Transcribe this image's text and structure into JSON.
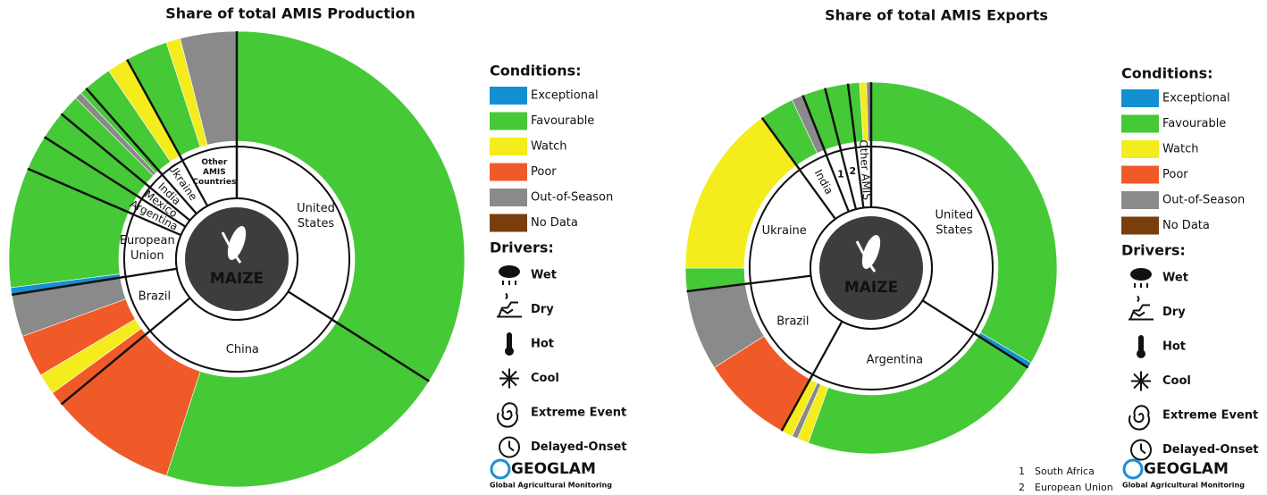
{
  "legend": {
    "conditions_title": "Conditions:",
    "conditions": [
      {
        "name": "Exceptional",
        "color": "#1290d2"
      },
      {
        "name": "Favourable",
        "color": "#45c936"
      },
      {
        "name": "Watch",
        "color": "#f4ec1c"
      },
      {
        "name": "Poor",
        "color": "#f05a28"
      },
      {
        "name": "Out-of-Season",
        "color": "#8a8a8a"
      },
      {
        "name": "No Data",
        "color": "#7a3e0c"
      }
    ],
    "drivers_title": "Drivers:",
    "drivers": [
      "Wet",
      "Dry",
      "Hot",
      "Cool",
      "Extreme Event",
      "Delayed-Onset"
    ]
  },
  "logo": {
    "name": "GEOGLAM",
    "tagline": "Global Agricultural Monitoring"
  },
  "chart_data": [
    {
      "type": "donut",
      "title": "Share of total AMIS Production",
      "center_label": "MAIZE",
      "countries": [
        {
          "label": "United States",
          "value": 34,
          "segments": [
            {
              "color": "#45c936",
              "value": 34
            }
          ]
        },
        {
          "label": "China",
          "value": 30,
          "segments": [
            {
              "color": "#45c936",
              "value": 21
            },
            {
              "color": "#f05a28",
              "value": 9
            }
          ]
        },
        {
          "label": "Brazil",
          "value": 8.5,
          "segments": [
            {
              "color": "#f05a28",
              "value": 1
            },
            {
              "color": "#f4ec1c",
              "value": 1.5
            },
            {
              "color": "#f05a28",
              "value": 3
            },
            {
              "color": "#8a8a8a",
              "value": 3
            }
          ]
        },
        {
          "label": "European Union",
          "value": 9,
          "segments": [
            {
              "color": "#1290d2",
              "value": 0.5
            },
            {
              "color": "#45c936",
              "value": 8.5
            }
          ]
        },
        {
          "label": "Argentina",
          "value": 2.5,
          "segments": [
            {
              "color": "#45c936",
              "value": 2.5
            }
          ]
        },
        {
          "label": "Mexico",
          "value": 2,
          "segments": [
            {
              "color": "#45c936",
              "value": 2
            }
          ]
        },
        {
          "label": "India",
          "value": 2.5,
          "segments": [
            {
              "color": "#45c936",
              "value": 1.5
            },
            {
              "color": "#8a8a8a",
              "value": 0.5
            },
            {
              "color": "#45c936",
              "value": 0.5
            }
          ]
        },
        {
          "label": "Ukraine",
          "value": 3.5,
          "segments": [
            {
              "color": "#45c936",
              "value": 2
            },
            {
              "color": "#f4ec1c",
              "value": 1.5
            }
          ]
        },
        {
          "label": "Other AMIS Countries",
          "value": 8,
          "segments": [
            {
              "color": "#45c936",
              "value": 3
            },
            {
              "color": "#f4ec1c",
              "value": 1
            },
            {
              "color": "#8a8a8a",
              "value": 4
            }
          ]
        }
      ]
    },
    {
      "type": "donut",
      "title": "Share of total AMIS Exports",
      "center_label": "MAIZE",
      "countries": [
        {
          "label": "United States",
          "value": 34,
          "segments": [
            {
              "color": "#45c936",
              "value": 33.5
            },
            {
              "color": "#1290d2",
              "value": 0.5
            }
          ]
        },
        {
          "label": "Argentina",
          "value": 24,
          "segments": [
            {
              "color": "#45c936",
              "value": 21.5
            },
            {
              "color": "#f4ec1c",
              "value": 1
            },
            {
              "color": "#8a8a8a",
              "value": 0.5
            },
            {
              "color": "#f4ec1c",
              "value": 1
            }
          ]
        },
        {
          "label": "Brazil",
          "value": 15,
          "segments": [
            {
              "color": "#f05a28",
              "value": 8
            },
            {
              "color": "#8a8a8a",
              "value": 7
            }
          ]
        },
        {
          "label": "Ukraine",
          "value": 17,
          "segments": [
            {
              "color": "#45c936",
              "value": 2
            },
            {
              "color": "#f4ec1c",
              "value": 15
            }
          ]
        },
        {
          "label": "India",
          "value": 4,
          "segments": [
            {
              "color": "#45c936",
              "value": 3
            },
            {
              "color": "#8a8a8a",
              "value": 1
            }
          ]
        },
        {
          "label": "1",
          "value": 2,
          "segments": [
            {
              "color": "#45c936",
              "value": 2
            }
          ]
        },
        {
          "label": "2",
          "value": 2,
          "segments": [
            {
              "color": "#45c936",
              "value": 2
            }
          ]
        },
        {
          "label": "Other AMIS",
          "value": 2,
          "segments": [
            {
              "color": "#45c936",
              "value": 1
            },
            {
              "color": "#f4ec1c",
              "value": 0.6
            },
            {
              "color": "#8a8a8a",
              "value": 0.4
            }
          ]
        }
      ],
      "footnotes": [
        "South Africa",
        "European Union"
      ]
    }
  ]
}
